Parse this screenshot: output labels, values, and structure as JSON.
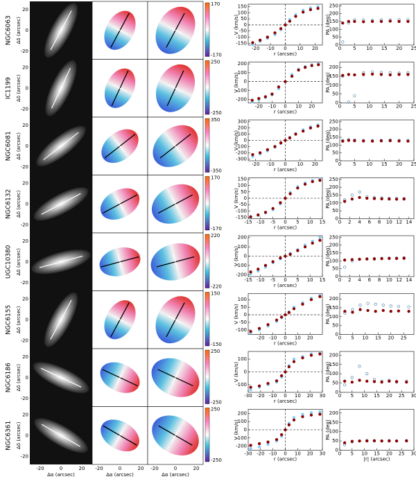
{
  "panels": {
    "image_xlabel": "Δα (arcsec)",
    "image_ylabel": "Δδ (arcsec)",
    "image_xticks": [
      -20,
      0,
      20
    ],
    "image_yticks": [
      20,
      0,
      -20
    ],
    "rows": [
      {
        "name": "NGC6063",
        "colorbar_ticks": [
          170,
          -170
        ]
      },
      {
        "name": "IC1199",
        "colorbar_ticks": [
          250,
          -250
        ]
      },
      {
        "name": "NGC6081",
        "colorbar_ticks": [
          350,
          -350
        ]
      },
      {
        "name": "NGC6132",
        "colorbar_ticks": [
          170,
          -170
        ]
      },
      {
        "name": "UGC10380",
        "colorbar_ticks": [
          220,
          -220
        ]
      },
      {
        "name": "NGC6155",
        "colorbar_ticks": [
          150,
          -150
        ]
      },
      {
        "name": "NGC6186",
        "colorbar_ticks": [
          250,
          -250
        ]
      },
      {
        "name": "NGC6361",
        "colorbar_ticks": [
          250,
          -250
        ]
      }
    ]
  },
  "chart_data": [
    {
      "type": "scatter",
      "xlabel": "r (arcsec)",
      "ylabel": "V (km/s)",
      "xlim": [
        -25,
        25
      ],
      "ylim": [
        -165,
        170
      ],
      "xticks": [
        -20,
        -10,
        0,
        10,
        20
      ],
      "yticks": [
        150,
        100,
        50,
        0,
        -50,
        -100,
        -150
      ],
      "x": [
        -22,
        -17,
        -12,
        -7,
        -3,
        0,
        3,
        7,
        12,
        17,
        22
      ],
      "series": [
        {
          "color": "#87cefa",
          "values": [
            -160,
            -135,
            -110,
            -80,
            -40,
            0,
            45,
            85,
            120,
            140,
            150
          ]
        },
        {
          "color": "#8b0000",
          "values": [
            -145,
            -125,
            -100,
            -65,
            -30,
            0,
            30,
            70,
            105,
            125,
            135
          ]
        }
      ]
    },
    {
      "type": "scatter",
      "ylabel": "PA (deg)",
      "xlim": [
        0,
        25
      ],
      "ylim": [
        0,
        260
      ],
      "xticks": [
        0,
        5,
        10,
        15,
        20,
        25
      ],
      "yticks": [
        250,
        200,
        150,
        100,
        50,
        0
      ],
      "x": [
        1,
        3,
        5,
        8,
        11,
        14,
        17,
        20,
        23
      ],
      "series": [
        {
          "color": "#87cefa",
          "values": [
            20,
            140,
            160,
            160,
            158,
            160,
            160,
            160,
            160
          ]
        },
        {
          "color": "#8b0000",
          "values": [
            140,
            150,
            150,
            148,
            150,
            150,
            152,
            150,
            150
          ]
        }
      ]
    },
    {
      "type": "scatter",
      "xlabel": "r (arcsec)",
      "ylabel": "V (km/s)",
      "xlim": [
        -28,
        28
      ],
      "ylim": [
        -240,
        220
      ],
      "xticks": [
        -20,
        -10,
        0,
        10,
        20
      ],
      "yticks": [
        200,
        100,
        0,
        -100,
        -200
      ],
      "x": [
        -25,
        -20,
        -15,
        -10,
        -5,
        0,
        5,
        10,
        15,
        20,
        25
      ],
      "series": [
        {
          "color": "#87cefa",
          "values": [
            -230,
            -205,
            -180,
            -150,
            -80,
            0,
            80,
            140,
            170,
            190,
            200
          ]
        },
        {
          "color": "#8b0000",
          "values": [
            -210,
            -190,
            -170,
            -140,
            -60,
            0,
            60,
            130,
            160,
            180,
            190
          ]
        }
      ]
    },
    {
      "type": "scatter",
      "ylabel": "PA (deg)",
      "xlim": [
        0,
        25
      ],
      "ylim": [
        0,
        230
      ],
      "xticks": [
        0,
        5,
        10,
        15,
        20,
        25
      ],
      "yticks": [
        200,
        150,
        100,
        50,
        0
      ],
      "x": [
        1,
        3,
        5,
        8,
        11,
        14,
        17,
        20,
        23
      ],
      "series": [
        {
          "color": "#87cefa",
          "values": [
            150,
            5,
            40,
            170,
            175,
            172,
            170,
            168,
            170
          ]
        },
        {
          "color": "#8b0000",
          "values": [
            155,
            160,
            158,
            160,
            162,
            160,
            158,
            160,
            160
          ]
        }
      ]
    },
    {
      "type": "scatter",
      "xlabel": "r (arcsec)",
      "ylabel": "V (km/s)",
      "xlim": [
        -25,
        25
      ],
      "ylim": [
        -330,
        330
      ],
      "xticks": [
        -20,
        -10,
        0,
        10,
        20
      ],
      "yticks": [
        300,
        200,
        100,
        0,
        -100,
        -200,
        -300
      ],
      "x": [
        -22,
        -17,
        -12,
        -7,
        -3,
        0,
        3,
        7,
        12,
        17,
        22
      ],
      "series": [
        {
          "color": "#87cefa",
          "values": [
            -260,
            -220,
            -170,
            -110,
            -50,
            0,
            50,
            110,
            170,
            220,
            250
          ]
        },
        {
          "color": "#8b0000",
          "values": [
            -230,
            -200,
            -150,
            -100,
            -40,
            0,
            40,
            100,
            150,
            200,
            230
          ]
        }
      ]
    },
    {
      "type": "scatter",
      "ylabel": "PA (deg)",
      "xlim": [
        0,
        25
      ],
      "ylim": [
        0,
        260
      ],
      "xticks": [
        0,
        5,
        10,
        15,
        20,
        25
      ],
      "yticks": [
        250,
        200,
        150,
        100,
        50,
        0
      ],
      "x": [
        1,
        3,
        5,
        8,
        11,
        14,
        17,
        20,
        23
      ],
      "series": [
        {
          "color": "#87cefa",
          "values": [
            130,
            135,
            132,
            130,
            128,
            130,
            132,
            130,
            130
          ]
        },
        {
          "color": "#8b0000",
          "values": [
            125,
            130,
            128,
            126,
            125,
            127,
            128,
            126,
            125
          ]
        }
      ]
    },
    {
      "type": "scatter",
      "xlabel": "r (arcsec)",
      "ylabel": "V (km/s)",
      "xlim": [
        -15,
        15
      ],
      "ylim": [
        -160,
        160
      ],
      "xticks": [
        -15,
        -10,
        -5,
        0,
        5,
        10,
        15
      ],
      "yticks": [
        150,
        100,
        50,
        0,
        -50,
        -100,
        -150
      ],
      "x": [
        -14,
        -11,
        -8,
        -5,
        -2,
        0,
        2,
        5,
        8,
        11,
        14
      ],
      "series": [
        {
          "color": "#87cefa",
          "values": [
            -150,
            -135,
            -115,
            -90,
            -45,
            0,
            45,
            90,
            120,
            140,
            150
          ]
        },
        {
          "color": "#8b0000",
          "values": [
            -145,
            -130,
            -110,
            -80,
            -35,
            0,
            35,
            80,
            110,
            130,
            140
          ]
        }
      ]
    },
    {
      "type": "scatter",
      "ylabel": "PA (deg)",
      "xlim": [
        0,
        15
      ],
      "ylim": [
        0,
        260
      ],
      "xticks": [
        0,
        2,
        4,
        6,
        8,
        10,
        12,
        14
      ],
      "yticks": [
        250,
        200,
        150,
        100,
        50,
        0
      ],
      "x": [
        1,
        2.5,
        4,
        5.5,
        7,
        8.5,
        10,
        11.5,
        13
      ],
      "series": [
        {
          "color": "#87cefa",
          "values": [
            120,
            150,
            170,
            140,
            135,
            132,
            130,
            130,
            128
          ]
        },
        {
          "color": "#8b0000",
          "values": [
            110,
            125,
            135,
            130,
            128,
            126,
            125,
            124,
            125
          ]
        }
      ]
    },
    {
      "type": "scatter",
      "xlabel": "r (arcsec)",
      "ylabel": "V (km/s)",
      "xlim": [
        -15,
        15
      ],
      "ylim": [
        -220,
        220
      ],
      "xticks": [
        -15,
        -10,
        -5,
        0,
        5,
        10,
        15
      ],
      "yticks": [
        200,
        100,
        0,
        -100,
        -200
      ],
      "x": [
        -14,
        -11,
        -8,
        -5,
        -2,
        0,
        2,
        5,
        8,
        11,
        14
      ],
      "series": [
        {
          "color": "#87cefa",
          "values": [
            -190,
            -160,
            -120,
            -70,
            -30,
            0,
            30,
            70,
            120,
            160,
            200
          ]
        },
        {
          "color": "#8b0000",
          "values": [
            -170,
            -140,
            -100,
            -60,
            -20,
            0,
            20,
            60,
            100,
            140,
            170
          ]
        }
      ]
    },
    {
      "type": "scatter",
      "ylabel": "PA (deg)",
      "xlim": [
        0,
        15
      ],
      "ylim": [
        0,
        260
      ],
      "xticks": [
        0,
        2,
        4,
        6,
        8,
        10,
        12,
        14
      ],
      "yticks": [
        250,
        200,
        150,
        100,
        50,
        0
      ],
      "x": [
        1,
        2.5,
        4,
        5.5,
        7,
        8.5,
        10,
        11.5,
        13
      ],
      "series": [
        {
          "color": "#87cefa",
          "values": [
            60,
            100,
            110,
            112,
            115,
            116,
            118,
            118,
            120
          ]
        },
        {
          "color": "#8b0000",
          "values": [
            105,
            108,
            110,
            112,
            112,
            114,
            115,
            115,
            116
          ]
        }
      ]
    },
    {
      "type": "scatter",
      "xlabel": "r (arcsec)",
      "ylabel": "V (km/s)",
      "xlim": [
        -30,
        30
      ],
      "ylim": [
        -130,
        140
      ],
      "xticks": [
        -20,
        -10,
        0,
        10,
        20
      ],
      "yticks": [
        100,
        50,
        0,
        -50,
        -100
      ],
      "x": [
        -28,
        -21,
        -14,
        -7,
        -3,
        0,
        3,
        7,
        14,
        21,
        28
      ],
      "series": [
        {
          "color": "#87cefa",
          "values": [
            -120,
            -100,
            -75,
            -45,
            -20,
            0,
            20,
            50,
            80,
            110,
            130
          ]
        },
        {
          "color": "#8b0000",
          "values": [
            -110,
            -90,
            -65,
            -35,
            -15,
            0,
            15,
            40,
            70,
            100,
            120
          ]
        }
      ]
    },
    {
      "type": "scatter",
      "ylabel": "PA (deg)",
      "xlim": [
        0,
        29
      ],
      "ylim": [
        0,
        230
      ],
      "xticks": [
        0,
        5,
        10,
        15,
        20,
        25
      ],
      "yticks": [
        200,
        150,
        100,
        50,
        0
      ],
      "x": [
        2,
        5,
        8,
        11,
        14,
        17,
        20,
        23,
        27
      ],
      "series": [
        {
          "color": "#87cefa",
          "values": [
            120,
            140,
            165,
            175,
            170,
            165,
            160,
            158,
            155
          ]
        },
        {
          "color": "#8b0000",
          "values": [
            130,
            125,
            140,
            135,
            130,
            135,
            130,
            132,
            130
          ]
        }
      ]
    },
    {
      "type": "scatter",
      "xlabel": "r (arcsec)",
      "ylabel": "V (km/s)",
      "xlim": [
        -30,
        30
      ],
      "ylim": [
        -160,
        160
      ],
      "xticks": [
        -30,
        -20,
        -10,
        0,
        10,
        20,
        30
      ],
      "yticks": [
        100,
        0,
        -100
      ],
      "x": [
        -28,
        -21,
        -14,
        -7,
        -3,
        0,
        3,
        7,
        14,
        21,
        28
      ],
      "series": [
        {
          "color": "#87cefa",
          "values": [
            -140,
            -120,
            -100,
            -80,
            -40,
            0,
            50,
            100,
            120,
            140,
            150
          ]
        },
        {
          "color": "#8b0000",
          "values": [
            -120,
            -110,
            -90,
            -70,
            -30,
            0,
            40,
            80,
            110,
            130,
            140
          ]
        }
      ]
    },
    {
      "type": "scatter",
      "ylabel": "PA (deg)",
      "xlim": [
        0,
        30
      ],
      "ylim": [
        0,
        220
      ],
      "xticks": [
        0,
        5,
        10,
        15,
        20,
        25,
        30
      ],
      "yticks": [
        200,
        150,
        100,
        50,
        0
      ],
      "x": [
        2,
        5,
        8,
        11,
        14,
        17,
        20,
        23,
        27
      ],
      "series": [
        {
          "color": "#87cefa",
          "values": [
            40,
            80,
            140,
            100,
            70,
            60,
            65,
            55,
            60
          ]
        },
        {
          "color": "#8b0000",
          "values": [
            60,
            55,
            65,
            60,
            58,
            55,
            60,
            58,
            55
          ]
        }
      ]
    },
    {
      "type": "scatter",
      "xlabel": "r (arcsec)",
      "ylabel": "V (km/s)",
      "xlim": [
        -30,
        30
      ],
      "ylim": [
        -250,
        250
      ],
      "xticks": [
        -30,
        -20,
        -10,
        0,
        10,
        20,
        30
      ],
      "yticks": [
        200,
        100,
        0,
        -100,
        -200
      ],
      "x": [
        -28,
        -21,
        -14,
        -7,
        -3,
        0,
        3,
        7,
        14,
        21,
        28
      ],
      "series": [
        {
          "color": "#87cefa",
          "values": [
            -230,
            -210,
            -180,
            -140,
            -80,
            0,
            80,
            150,
            190,
            210,
            220
          ]
        },
        {
          "color": "#8b0000",
          "values": [
            -190,
            -170,
            -150,
            -120,
            -60,
            0,
            60,
            120,
            160,
            180,
            190
          ]
        }
      ]
    },
    {
      "type": "scatter",
      "xlabel": "|r| (arcsec)",
      "ylabel": "PA (deg)",
      "xlim": [
        0,
        30
      ],
      "ylim": [
        0,
        220
      ],
      "xticks": [
        0,
        5,
        10,
        15,
        20,
        25,
        30
      ],
      "yticks": [
        200,
        150,
        100,
        50,
        0
      ],
      "x": [
        2,
        5,
        8,
        11,
        14,
        17,
        20,
        23,
        27
      ],
      "series": [
        {
          "color": "#87cefa",
          "values": [
            30,
            45,
            50,
            52,
            50,
            50,
            52,
            50,
            50
          ]
        },
        {
          "color": "#8b0000",
          "values": [
            40,
            48,
            50,
            50,
            51,
            50,
            50,
            50,
            51
          ]
        }
      ]
    }
  ]
}
